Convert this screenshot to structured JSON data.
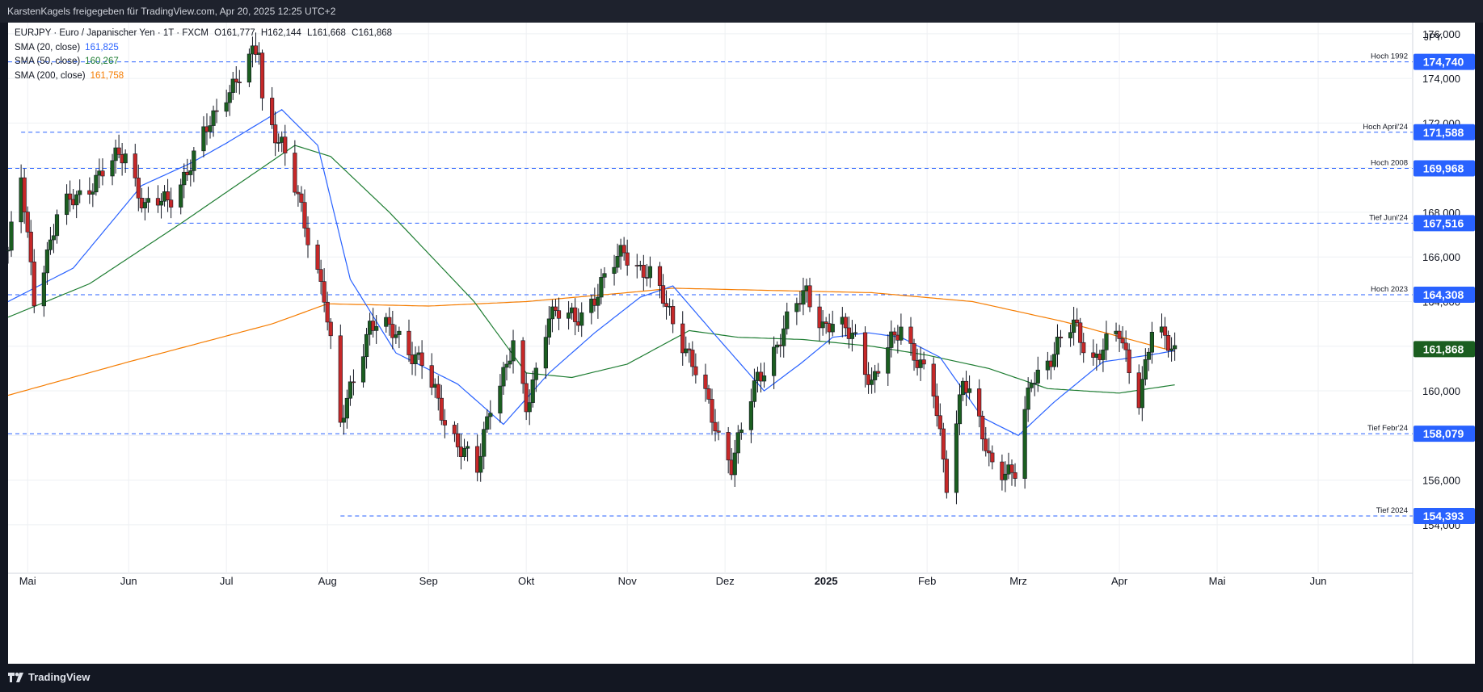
{
  "header": {
    "text": "KarstenKagels freigegeben für TradingView.com, Apr 20, 2025 12:25 UTC+2"
  },
  "legend": {
    "symbol_line": "EURJPY · Euro / Japanischer Yen · 1T · FXCM",
    "ohlc": {
      "open_label": "O",
      "open": "161,777",
      "high_label": "H",
      "high": "162,144",
      "low_label": "L",
      "low": "161,668",
      "close_label": "C",
      "close": "161,868"
    },
    "indicators": [
      {
        "label": "SMA (20, close)",
        "value": "161,825",
        "color": "#2962ff"
      },
      {
        "label": "SMA (50, close)",
        "value": "160,267",
        "color": "#1e7d32"
      },
      {
        "label": "SMA (200, close)",
        "value": "161,758",
        "color": "#f57c00"
      }
    ]
  },
  "footer": {
    "brand": "TradingView"
  },
  "chart_data": {
    "type": "candlestick",
    "symbol": "EURJPY",
    "currency_label": "JPY",
    "ylim": [
      153.2,
      176.5
    ],
    "y_ticks": [
      154,
      156,
      158,
      160,
      162,
      164,
      166,
      168,
      170,
      172,
      174,
      176
    ],
    "y_tick_labels": [
      "154,000",
      "156,000",
      "158,000",
      "160,000",
      "162,000",
      "164,000",
      "166,000",
      "168,000",
      "170,000",
      "172,000",
      "174,000",
      "176,000"
    ],
    "x_start": "2024-04-25",
    "x_end": "2025-06-30",
    "x_ticks": [
      {
        "date": "2024-05-01",
        "label": "Mai",
        "bold": false
      },
      {
        "date": "2024-06-01",
        "label": "Jun",
        "bold": false
      },
      {
        "date": "2024-07-01",
        "label": "Jul",
        "bold": false
      },
      {
        "date": "2024-08-01",
        "label": "Aug",
        "bold": false
      },
      {
        "date": "2024-09-01",
        "label": "Sep",
        "bold": false
      },
      {
        "date": "2024-10-01",
        "label": "Okt",
        "bold": false
      },
      {
        "date": "2024-11-01",
        "label": "Nov",
        "bold": false
      },
      {
        "date": "2024-12-01",
        "label": "Dez",
        "bold": false
      },
      {
        "date": "2025-01-01",
        "label": "2025",
        "bold": true
      },
      {
        "date": "2025-02-01",
        "label": "Feb",
        "bold": false
      },
      {
        "date": "2025-03-01",
        "label": "Mrz",
        "bold": false
      },
      {
        "date": "2025-04-01",
        "label": "Apr",
        "bold": false
      },
      {
        "date": "2025-05-01",
        "label": "Mai",
        "bold": false
      },
      {
        "date": "2025-06-01",
        "label": "Jun",
        "bold": false
      }
    ],
    "levels": [
      {
        "price": 174.74,
        "label": "174,740",
        "annotation": "Hoch 1992",
        "from": "2024-04-25"
      },
      {
        "price": 171.588,
        "label": "171,588",
        "annotation": "Hoch April'24",
        "from": "2024-04-29"
      },
      {
        "price": 169.968,
        "label": "169,968",
        "annotation": "Hoch 2008",
        "from": "2024-04-25"
      },
      {
        "price": 167.516,
        "label": "167,516",
        "annotation": "Tief Juni'24",
        "from": "2024-06-13"
      },
      {
        "price": 164.308,
        "label": "164,308",
        "annotation": "Hoch 2023",
        "from": "2024-04-25"
      },
      {
        "price": 158.079,
        "label": "158,079",
        "annotation": "Tief Febr'24",
        "from": "2024-04-25"
      },
      {
        "price": 154.393,
        "label": "154,393",
        "annotation": "Tief 2024",
        "from": "2024-08-05"
      }
    ],
    "last_price": {
      "price": 161.868,
      "label": "161,868"
    },
    "waypoints": [
      [
        "2024-04-25",
        166.3
      ],
      [
        "2024-04-29",
        169.4
      ],
      [
        "2024-05-03",
        164.2
      ],
      [
        "2024-05-10",
        167.8
      ],
      [
        "2024-05-21",
        169.4
      ],
      [
        "2024-05-31",
        170.7
      ],
      [
        "2024-06-06",
        168.2
      ],
      [
        "2024-06-13",
        168.5
      ],
      [
        "2024-06-21",
        170.4
      ],
      [
        "2024-07-01",
        173.5
      ],
      [
        "2024-07-05",
        174.0
      ],
      [
        "2024-07-11",
        175.4
      ],
      [
        "2024-07-12",
        173.0
      ],
      [
        "2024-07-18",
        171.0
      ],
      [
        "2024-07-25",
        167.5
      ],
      [
        "2024-07-31",
        164.4
      ],
      [
        "2024-08-05",
        158.3
      ],
      [
        "2024-08-09",
        160.7
      ],
      [
        "2024-08-14",
        163.0
      ],
      [
        "2024-08-23",
        162.5
      ],
      [
        "2024-08-30",
        161.2
      ],
      [
        "2024-09-06",
        158.7
      ],
      [
        "2024-09-16",
        156.3
      ],
      [
        "2024-09-20",
        159.5
      ],
      [
        "2024-09-27",
        162.0
      ],
      [
        "2024-10-01",
        159.0
      ],
      [
        "2024-10-08",
        163.6
      ],
      [
        "2024-10-16",
        163.1
      ],
      [
        "2024-10-23",
        164.5
      ],
      [
        "2024-10-31",
        166.3
      ],
      [
        "2024-11-08",
        165.1
      ],
      [
        "2024-11-14",
        163.5
      ],
      [
        "2024-11-19",
        162.0
      ],
      [
        "2024-11-29",
        158.0
      ],
      [
        "2024-12-03",
        156.8
      ],
      [
        "2024-12-11",
        160.5
      ],
      [
        "2024-12-20",
        163.0
      ],
      [
        "2024-12-26",
        164.5
      ],
      [
        "2024-12-31",
        163.0
      ],
      [
        "2025-01-10",
        162.5
      ],
      [
        "2025-01-15",
        160.3
      ],
      [
        "2025-01-24",
        163.0
      ],
      [
        "2025-02-03",
        159.8
      ],
      [
        "2025-02-07",
        156.0
      ],
      [
        "2025-02-12",
        160.6
      ],
      [
        "2025-02-20",
        157.0
      ],
      [
        "2025-02-28",
        156.2
      ],
      [
        "2025-03-05",
        160.5
      ],
      [
        "2025-03-11",
        161.6
      ],
      [
        "2025-03-18",
        162.9
      ],
      [
        "2025-03-24",
        161.5
      ],
      [
        "2025-04-01",
        162.5
      ],
      [
        "2025-04-07",
        159.8
      ],
      [
        "2025-04-11",
        162.6
      ],
      [
        "2025-04-18",
        161.9
      ]
    ],
    "sma20": [
      [
        "2024-04-25",
        164.0
      ],
      [
        "2024-05-15",
        165.5
      ],
      [
        "2024-06-05",
        169.2
      ],
      [
        "2024-06-20",
        170.2
      ],
      [
        "2024-07-01",
        171.1
      ],
      [
        "2024-07-18",
        172.6
      ],
      [
        "2024-07-29",
        171.0
      ],
      [
        "2024-08-08",
        165.0
      ],
      [
        "2024-08-22",
        161.7
      ],
      [
        "2024-09-10",
        160.3
      ],
      [
        "2024-09-24",
        158.5
      ],
      [
        "2024-10-08",
        160.8
      ],
      [
        "2024-10-22",
        162.6
      ],
      [
        "2024-11-05",
        164.2
      ],
      [
        "2024-11-15",
        164.7
      ],
      [
        "2024-11-28",
        162.5
      ],
      [
        "2024-12-13",
        160.0
      ],
      [
        "2024-12-24",
        161.2
      ],
      [
        "2025-01-03",
        162.4
      ],
      [
        "2025-01-14",
        162.6
      ],
      [
        "2025-01-24",
        162.4
      ],
      [
        "2025-02-05",
        161.5
      ],
      [
        "2025-02-18",
        158.8
      ],
      [
        "2025-03-01",
        158.0
      ],
      [
        "2025-03-12",
        159.5
      ],
      [
        "2025-03-27",
        161.3
      ],
      [
        "2025-04-10",
        161.6
      ],
      [
        "2025-04-18",
        161.8
      ]
    ],
    "sma50": [
      [
        "2024-04-25",
        163.3
      ],
      [
        "2024-05-20",
        164.8
      ],
      [
        "2024-06-17",
        167.5
      ],
      [
        "2024-07-10",
        169.8
      ],
      [
        "2024-07-22",
        171.0
      ],
      [
        "2024-08-02",
        170.5
      ],
      [
        "2024-08-20",
        168.0
      ],
      [
        "2024-09-15",
        164.0
      ],
      [
        "2024-10-01",
        160.8
      ],
      [
        "2024-10-15",
        160.6
      ],
      [
        "2024-11-01",
        161.2
      ],
      [
        "2024-11-20",
        162.7
      ],
      [
        "2024-12-05",
        162.4
      ],
      [
        "2024-12-25",
        162.3
      ],
      [
        "2025-01-15",
        162.0
      ],
      [
        "2025-02-01",
        161.6
      ],
      [
        "2025-02-20",
        161.0
      ],
      [
        "2025-03-10",
        160.1
      ],
      [
        "2025-04-01",
        159.9
      ],
      [
        "2025-04-18",
        160.27
      ]
    ],
    "sma200": [
      [
        "2024-04-25",
        159.8
      ],
      [
        "2024-06-01",
        161.3
      ],
      [
        "2024-07-15",
        163.0
      ],
      [
        "2024-08-01",
        163.9
      ],
      [
        "2024-09-01",
        163.8
      ],
      [
        "2024-10-01",
        164.0
      ],
      [
        "2024-11-01",
        164.4
      ],
      [
        "2024-11-15",
        164.6
      ],
      [
        "2024-12-15",
        164.5
      ],
      [
        "2025-01-15",
        164.4
      ],
      [
        "2025-02-15",
        164.0
      ],
      [
        "2025-03-15",
        163.1
      ],
      [
        "2025-04-18",
        161.76
      ]
    ]
  }
}
